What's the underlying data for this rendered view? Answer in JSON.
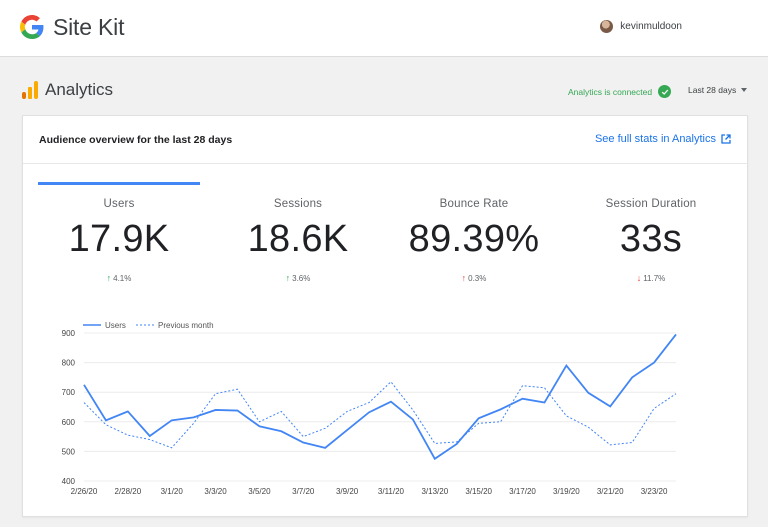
{
  "header": {
    "brand": "Site Kit",
    "username": "kevinmuldoon"
  },
  "section": {
    "title": "Analytics",
    "status": "Analytics is connected",
    "date_range": "Last 28 days"
  },
  "card": {
    "title": "Audience overview for the last 28 days",
    "link": "See full stats in Analytics"
  },
  "metrics": [
    {
      "label": "Users",
      "value": "17.9K",
      "change": "4.1%",
      "direction": "up",
      "tone": "positive"
    },
    {
      "label": "Sessions",
      "value": "18.6K",
      "change": "3.6%",
      "direction": "up",
      "tone": "positive"
    },
    {
      "label": "Bounce Rate",
      "value": "89.39%",
      "change": "0.3%",
      "direction": "up",
      "tone": "negative"
    },
    {
      "label": "Session Duration",
      "value": "33s",
      "change": "11.7%",
      "direction": "down",
      "tone": "negative"
    }
  ],
  "colors": {
    "accent": "#4285f4",
    "positive": "#34a853",
    "negative": "#ea4335",
    "link": "#1a73e8"
  },
  "chart_data": {
    "type": "line",
    "ylim": [
      400,
      900
    ],
    "yticks": [
      400,
      500,
      600,
      700,
      800,
      900
    ],
    "xtick_labels": [
      "2/26/20",
      "2/28/20",
      "3/1/20",
      "3/3/20",
      "3/5/20",
      "3/7/20",
      "3/9/20",
      "3/11/20",
      "3/13/20",
      "3/15/20",
      "3/17/20",
      "3/19/20",
      "3/21/20",
      "3/23/20"
    ],
    "legend": "top-left",
    "grid": true,
    "series": [
      {
        "name": "Users",
        "style": "solid",
        "color": "#4285f4",
        "values": [
          725,
          605,
          635,
          552,
          605,
          615,
          640,
          638,
          585,
          568,
          530,
          512,
          572,
          632,
          668,
          608,
          475,
          525,
          612,
          642,
          678,
          665,
          790,
          698,
          652,
          750,
          800,
          895
        ]
      },
      {
        "name": "Previous month",
        "style": "dashed",
        "color": "#4285f4",
        "values": [
          665,
          590,
          555,
          540,
          512,
          595,
          695,
          710,
          600,
          635,
          550,
          578,
          635,
          665,
          735,
          640,
          527,
          532,
          595,
          600,
          722,
          715,
          620,
          582,
          522,
          530,
          645,
          695
        ]
      }
    ]
  }
}
